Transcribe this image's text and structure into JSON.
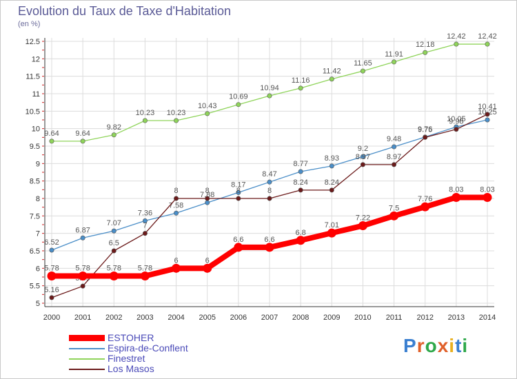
{
  "title": "Evolution du Taux de Taxe d'Habitation",
  "subtitle": "(en %)",
  "logo": "Proxiti",
  "chart_data": {
    "type": "line",
    "title": "Evolution du Taux de Taxe d'Habitation",
    "ylabel": "(en %)",
    "x": [
      "2000",
      "2001",
      "2002",
      "2003",
      "2004",
      "2005",
      "2006",
      "2007",
      "2008",
      "2009",
      "2010",
      "2011",
      "2012",
      "2013",
      "2014"
    ],
    "ylim": [
      5,
      12.5
    ],
    "yticks": [
      "5",
      "5.5",
      "6",
      "6.5",
      "7",
      "7.5",
      "8",
      "8.5",
      "9",
      "9.5",
      "10",
      "10.5",
      "11",
      "11.5",
      "12",
      "12.5"
    ],
    "grid": true,
    "legend_position": "bottom",
    "series": [
      {
        "name": "ESTOHER",
        "color": "#ff0000",
        "values": [
          5.78,
          5.78,
          5.78,
          5.78,
          6,
          6,
          6.6,
          6.6,
          6.8,
          7.01,
          7.22,
          7.5,
          7.76,
          8.03,
          8.03
        ],
        "labels": [
          "5.78",
          "5.78",
          "5.78",
          "5.78",
          "6",
          "6",
          "6.6",
          "6.6",
          "6.8",
          "7.01",
          "7.22",
          "7.5",
          "7.76",
          "8.03",
          "8.03"
        ]
      },
      {
        "name": "Espira-de-Conflent",
        "color": "#4a8ec8",
        "values": [
          6.52,
          6.87,
          7.07,
          7.36,
          7.58,
          7.88,
          8.17,
          8.47,
          8.77,
          8.93,
          9.2,
          9.48,
          9.76,
          10.05,
          10.25
        ],
        "labels": [
          "6.52",
          "6.87",
          "7.07",
          "7.36",
          "7.58",
          "7.88",
          "8.17",
          "8.47",
          "8.77",
          "8.93",
          "9.2",
          "9.48",
          "9.76",
          "10.05",
          "10.25"
        ]
      },
      {
        "name": "Finestret",
        "color": "#8fd45a",
        "values": [
          9.64,
          9.64,
          9.82,
          10.23,
          10.23,
          10.43,
          10.69,
          10.94,
          11.16,
          11.42,
          11.65,
          11.91,
          12.18,
          12.42,
          12.42
        ],
        "labels": [
          "9.64",
          "9.64",
          "9.82",
          "10.23",
          "10.23",
          "10.43",
          "10.69",
          "10.94",
          "11.16",
          "11.42",
          "11.65",
          "11.91",
          "12.18",
          "12.42",
          "12.42"
        ]
      },
      {
        "name": "Los Masos",
        "color": "#6b1a1a",
        "values": [
          5.16,
          5.49,
          6.5,
          7,
          8,
          8,
          8,
          8,
          8.24,
          8.24,
          8.97,
          8.97,
          9.75,
          9.98,
          10.41
        ],
        "labels": [
          "5.16",
          "5.49",
          "6.5",
          "7",
          "8",
          "8",
          "8",
          "8",
          "8.24",
          "8.24",
          "8.97",
          "8.97",
          "9.75",
          "9.98",
          "10.41"
        ]
      }
    ]
  }
}
